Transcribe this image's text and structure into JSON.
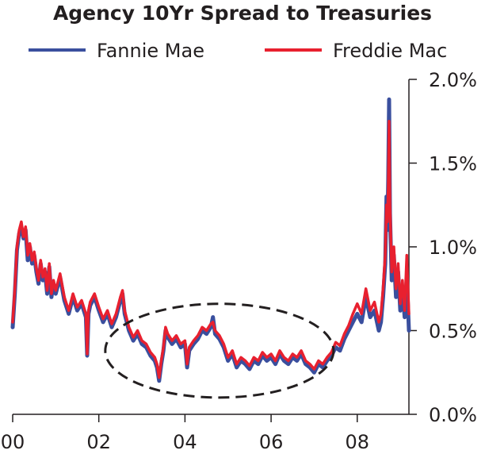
{
  "chart_data": {
    "type": "line",
    "title": "Agency 10Yr Spread to Treasuries",
    "xlabel": "",
    "ylabel": "",
    "xlim": [
      2000.0,
      2009.2
    ],
    "ylim": [
      0.0,
      2.0
    ],
    "x_ticks": [
      2000,
      2002,
      2004,
      2006,
      2008
    ],
    "x_tick_labels": [
      "00",
      "02",
      "04",
      "06",
      "08"
    ],
    "y_ticks": [
      0.0,
      0.5,
      1.0,
      1.5,
      2.0
    ],
    "y_tick_labels": [
      "0.0%",
      "0.5%",
      "1.0%",
      "1.5%",
      "2.0%"
    ],
    "y_axis_side": "right",
    "grid": false,
    "legend": "top",
    "annotation": {
      "shape": "dashed-ellipse",
      "x_center": 2004.8,
      "y_center": 0.38,
      "x_radius": 2.65,
      "y_radius": 0.28
    },
    "series": [
      {
        "name": "Fannie Mae",
        "color": "#3a4f9e",
        "x": [
          2000.0,
          2000.05,
          2000.1,
          2000.15,
          2000.2,
          2000.25,
          2000.3,
          2000.35,
          2000.4,
          2000.45,
          2000.5,
          2000.55,
          2000.6,
          2000.65,
          2000.7,
          2000.75,
          2000.8,
          2000.85,
          2000.9,
          2000.95,
          2001.0,
          2001.1,
          2001.2,
          2001.3,
          2001.4,
          2001.5,
          2001.6,
          2001.7,
          2001.73,
          2001.76,
          2001.8,
          2001.9,
          2002.0,
          2002.1,
          2002.2,
          2002.3,
          2002.4,
          2002.5,
          2002.55,
          2002.6,
          2002.7,
          2002.8,
          2002.9,
          2003.0,
          2003.1,
          2003.2,
          2003.3,
          2003.35,
          2003.4,
          2003.45,
          2003.5,
          2003.55,
          2003.6,
          2003.7,
          2003.8,
          2003.9,
          2004.0,
          2004.05,
          2004.1,
          2004.2,
          2004.3,
          2004.4,
          2004.5,
          2004.6,
          2004.65,
          2004.7,
          2004.8,
          2004.9,
          2005.0,
          2005.1,
          2005.2,
          2005.3,
          2005.4,
          2005.5,
          2005.6,
          2005.7,
          2005.8,
          2005.9,
          2006.0,
          2006.1,
          2006.2,
          2006.3,
          2006.4,
          2006.5,
          2006.6,
          2006.7,
          2006.8,
          2006.9,
          2007.0,
          2007.1,
          2007.2,
          2007.3,
          2007.4,
          2007.5,
          2007.6,
          2007.7,
          2007.8,
          2007.9,
          2008.0,
          2008.1,
          2008.2,
          2008.3,
          2008.4,
          2008.5,
          2008.55,
          2008.6,
          2008.65,
          2008.68,
          2008.7,
          2008.72,
          2008.74,
          2008.76,
          2008.8,
          2008.85,
          2008.9,
          2008.95,
          2009.0,
          2009.05,
          2009.1,
          2009.15,
          2009.2
        ],
        "values": [
          0.52,
          0.72,
          0.98,
          1.08,
          1.12,
          1.05,
          1.1,
          0.92,
          1.0,
          0.9,
          0.95,
          0.85,
          0.78,
          0.9,
          0.8,
          0.85,
          0.72,
          0.88,
          0.7,
          0.78,
          0.72,
          0.82,
          0.68,
          0.6,
          0.7,
          0.62,
          0.66,
          0.58,
          0.35,
          0.6,
          0.65,
          0.7,
          0.62,
          0.55,
          0.6,
          0.52,
          0.58,
          0.68,
          0.72,
          0.6,
          0.5,
          0.44,
          0.48,
          0.42,
          0.4,
          0.35,
          0.32,
          0.28,
          0.2,
          0.3,
          0.38,
          0.5,
          0.46,
          0.42,
          0.45,
          0.4,
          0.42,
          0.28,
          0.38,
          0.42,
          0.45,
          0.5,
          0.48,
          0.52,
          0.58,
          0.48,
          0.45,
          0.4,
          0.32,
          0.36,
          0.28,
          0.32,
          0.3,
          0.27,
          0.32,
          0.3,
          0.35,
          0.32,
          0.34,
          0.3,
          0.36,
          0.32,
          0.3,
          0.34,
          0.32,
          0.36,
          0.3,
          0.28,
          0.25,
          0.3,
          0.28,
          0.32,
          0.35,
          0.4,
          0.38,
          0.45,
          0.5,
          0.55,
          0.6,
          0.55,
          0.7,
          0.58,
          0.62,
          0.5,
          0.55,
          0.7,
          0.9,
          1.3,
          1.1,
          1.4,
          1.88,
          1.2,
          0.8,
          0.95,
          0.7,
          0.85,
          0.62,
          0.75,
          0.58,
          0.82,
          0.5
        ]
      },
      {
        "name": "Freddie Mac",
        "color": "#e8202f",
        "x": [
          2000.0,
          2000.05,
          2000.1,
          2000.15,
          2000.2,
          2000.25,
          2000.3,
          2000.35,
          2000.4,
          2000.45,
          2000.5,
          2000.55,
          2000.6,
          2000.65,
          2000.7,
          2000.75,
          2000.8,
          2000.85,
          2000.9,
          2000.95,
          2001.0,
          2001.1,
          2001.2,
          2001.3,
          2001.4,
          2001.5,
          2001.6,
          2001.7,
          2001.73,
          2001.76,
          2001.8,
          2001.9,
          2002.0,
          2002.1,
          2002.2,
          2002.3,
          2002.4,
          2002.5,
          2002.55,
          2002.6,
          2002.7,
          2002.8,
          2002.9,
          2003.0,
          2003.1,
          2003.2,
          2003.3,
          2003.35,
          2003.4,
          2003.45,
          2003.5,
          2003.55,
          2003.6,
          2003.7,
          2003.8,
          2003.9,
          2004.0,
          2004.05,
          2004.1,
          2004.2,
          2004.3,
          2004.4,
          2004.5,
          2004.6,
          2004.65,
          2004.7,
          2004.8,
          2004.9,
          2005.0,
          2005.1,
          2005.2,
          2005.3,
          2005.4,
          2005.5,
          2005.6,
          2005.7,
          2005.8,
          2005.9,
          2006.0,
          2006.1,
          2006.2,
          2006.3,
          2006.4,
          2006.5,
          2006.6,
          2006.7,
          2006.8,
          2006.9,
          2007.0,
          2007.1,
          2007.2,
          2007.3,
          2007.4,
          2007.5,
          2007.6,
          2007.7,
          2007.8,
          2007.9,
          2008.0,
          2008.1,
          2008.2,
          2008.3,
          2008.4,
          2008.5,
          2008.55,
          2008.6,
          2008.65,
          2008.68,
          2008.7,
          2008.72,
          2008.74,
          2008.76,
          2008.8,
          2008.85,
          2008.9,
          2008.95,
          2009.0,
          2009.05,
          2009.1,
          2009.15,
          2009.2
        ],
        "values": [
          0.55,
          0.75,
          1.0,
          1.1,
          1.15,
          1.06,
          1.12,
          0.95,
          1.02,
          0.92,
          0.97,
          0.87,
          0.8,
          0.92,
          0.82,
          0.87,
          0.74,
          0.9,
          0.72,
          0.8,
          0.74,
          0.84,
          0.7,
          0.62,
          0.72,
          0.64,
          0.68,
          0.6,
          0.36,
          0.62,
          0.67,
          0.72,
          0.64,
          0.57,
          0.62,
          0.54,
          0.6,
          0.7,
          0.74,
          0.62,
          0.52,
          0.46,
          0.5,
          0.44,
          0.42,
          0.37,
          0.34,
          0.3,
          0.22,
          0.32,
          0.4,
          0.52,
          0.48,
          0.44,
          0.47,
          0.42,
          0.44,
          0.3,
          0.4,
          0.44,
          0.47,
          0.52,
          0.5,
          0.54,
          0.55,
          0.5,
          0.47,
          0.42,
          0.34,
          0.38,
          0.3,
          0.34,
          0.32,
          0.29,
          0.34,
          0.32,
          0.37,
          0.34,
          0.36,
          0.32,
          0.38,
          0.34,
          0.32,
          0.36,
          0.34,
          0.38,
          0.32,
          0.3,
          0.27,
          0.32,
          0.3,
          0.34,
          0.37,
          0.43,
          0.41,
          0.48,
          0.53,
          0.6,
          0.66,
          0.6,
          0.75,
          0.62,
          0.67,
          0.55,
          0.6,
          0.75,
          0.95,
          1.25,
          1.15,
          1.35,
          1.75,
          1.25,
          0.85,
          1.0,
          0.75,
          0.9,
          0.66,
          0.8,
          0.62,
          0.95,
          0.6
        ]
      }
    ]
  }
}
